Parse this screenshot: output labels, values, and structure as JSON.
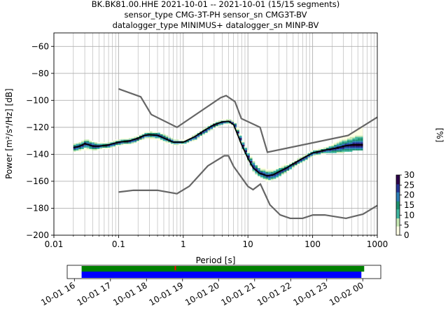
{
  "title_lines": [
    "BK.BK81.00.HHE   2021-10-01 -- 2021-10-01  (15/15 segments)",
    "sensor_type CMG-3T-PH sensor_sn CMG3T-BV",
    "datalogger_type MINIMUS+ datalogger_sn MINP-BV"
  ],
  "chart_data": {
    "type": "heatmap",
    "xlabel": "Period [s]",
    "ylabel": "Power [m²/s⁴/Hz] [dB]",
    "x_scale": "log",
    "xlim": [
      0.01,
      1000
    ],
    "ylim": [
      -200,
      -50
    ],
    "x_ticks": [
      0.01,
      0.1,
      1,
      10,
      100,
      1000
    ],
    "x_tick_labels": [
      "0.01",
      "0.1",
      "1",
      "10",
      "100",
      "1000"
    ],
    "y_ticks": [
      -200,
      -180,
      -160,
      -140,
      -120,
      -100,
      -80,
      -60
    ],
    "grid": true,
    "colorbar": {
      "label": "[%]",
      "range": [
        0,
        30
      ],
      "ticks": [
        0,
        5,
        10,
        15,
        20,
        25,
        30
      ],
      "colors": [
        "#ffffe5",
        "#c7e9b4",
        "#41b6a0",
        "#1d9170",
        "#2c7fb8",
        "#253494",
        "#2d004b"
      ]
    },
    "nhnm": {
      "name": "NHNM",
      "x": [
        0.1,
        0.22,
        0.32,
        0.8,
        3.8,
        4.6,
        6.3,
        7.9,
        15.4,
        20,
        354.8,
        1000
      ],
      "y": [
        -91.5,
        -97.4,
        -110.5,
        -120,
        -98,
        -96.5,
        -101,
        -113.5,
        -120,
        -138.5,
        -126,
        -112.5
      ]
    },
    "nlnm": {
      "name": "NLNM",
      "x": [
        0.1,
        0.17,
        0.4,
        0.8,
        1.24,
        2.4,
        4.3,
        5,
        6,
        10,
        12,
        15.6,
        21.9,
        31.6,
        45,
        70,
        101,
        154,
        328,
        600,
        1000
      ],
      "y": [
        -168,
        -166.7,
        -166.7,
        -169.2,
        -163.7,
        -148.6,
        -141.1,
        -141.1,
        -149,
        -163.8,
        -166.2,
        -162.1,
        -177.5,
        -185,
        -187.5,
        -187.5,
        -185,
        -185,
        -187.5,
        -184.4,
        -178
      ]
    },
    "mode": {
      "name": "mode",
      "x": [
        0.02,
        0.025,
        0.03,
        0.04,
        0.05,
        0.07,
        0.1,
        0.15,
        0.2,
        0.25,
        0.3,
        0.4,
        0.5,
        0.7,
        1,
        1.5,
        2,
        3,
        4,
        5,
        6,
        7,
        8,
        10,
        12,
        15,
        20,
        25,
        30,
        40,
        50,
        70,
        100,
        150,
        200,
        300,
        400,
        500,
        600
      ],
      "y": [
        -135,
        -134,
        -132,
        -134,
        -134,
        -133,
        -131,
        -130,
        -128,
        -126,
        -125.5,
        -126,
        -128,
        -131,
        -131,
        -127,
        -123,
        -118,
        -116,
        -115.5,
        -118,
        -126,
        -133,
        -143,
        -150,
        -154,
        -156,
        -155,
        -153,
        -150,
        -147,
        -143,
        -139,
        -137,
        -136,
        -134,
        -133,
        -133,
        -133
      ]
    },
    "psd_bands": [
      {
        "x": [
          0.02,
          0.025,
          0.03,
          0.04,
          0.05,
          0.07,
          0.1,
          0.15,
          0.2,
          0.25,
          0.3,
          0.4,
          0.5,
          0.7,
          1,
          1.5,
          2,
          3,
          4,
          5,
          6,
          7,
          8,
          10,
          12,
          15,
          20,
          25,
          30,
          40,
          50,
          70,
          100,
          150,
          200,
          300,
          400,
          500,
          600
        ],
        "y_low": [
          -138,
          -137,
          -136,
          -137,
          -136,
          -135,
          -133,
          -132,
          -130,
          -128,
          -128,
          -129,
          -131,
          -133,
          -132,
          -129,
          -125,
          -120,
          -117.5,
          -117,
          -120,
          -128,
          -136,
          -146,
          -154,
          -157,
          -160,
          -158,
          -156,
          -152,
          -149,
          -145,
          -141,
          -139,
          -139,
          -138,
          -137,
          -137,
          -135
        ],
        "y_high": [
          -132,
          -131,
          -129,
          -131,
          -132,
          -131,
          -129,
          -128,
          -126,
          -124,
          -123.5,
          -124,
          -126,
          -129,
          -130,
          -125,
          -121,
          -116,
          -114.5,
          -114.5,
          -116,
          -123,
          -130,
          -139,
          -146,
          -150,
          -152,
          -151,
          -149,
          -147,
          -145,
          -141,
          -137,
          -135,
          -132,
          -127,
          -124,
          -121,
          -119
        ]
      }
    ],
    "time_axis": {
      "tick_labels": [
        "10-01 16",
        "10-01 17",
        "10-01 18",
        "10-01 19",
        "10-01 20",
        "10-01 21",
        "10-01 22",
        "10-01 23",
        "10-02 00"
      ],
      "data_start_hour": 16.2,
      "data_end_hour": 24.0,
      "gap_marker_hour": 18.8,
      "colors": {
        "green": "#008000",
        "blue": "#0000ff",
        "red": "#ff0000"
      }
    },
    "line_colors": {
      "noise_models": "#666666",
      "mode": "#000000"
    }
  }
}
